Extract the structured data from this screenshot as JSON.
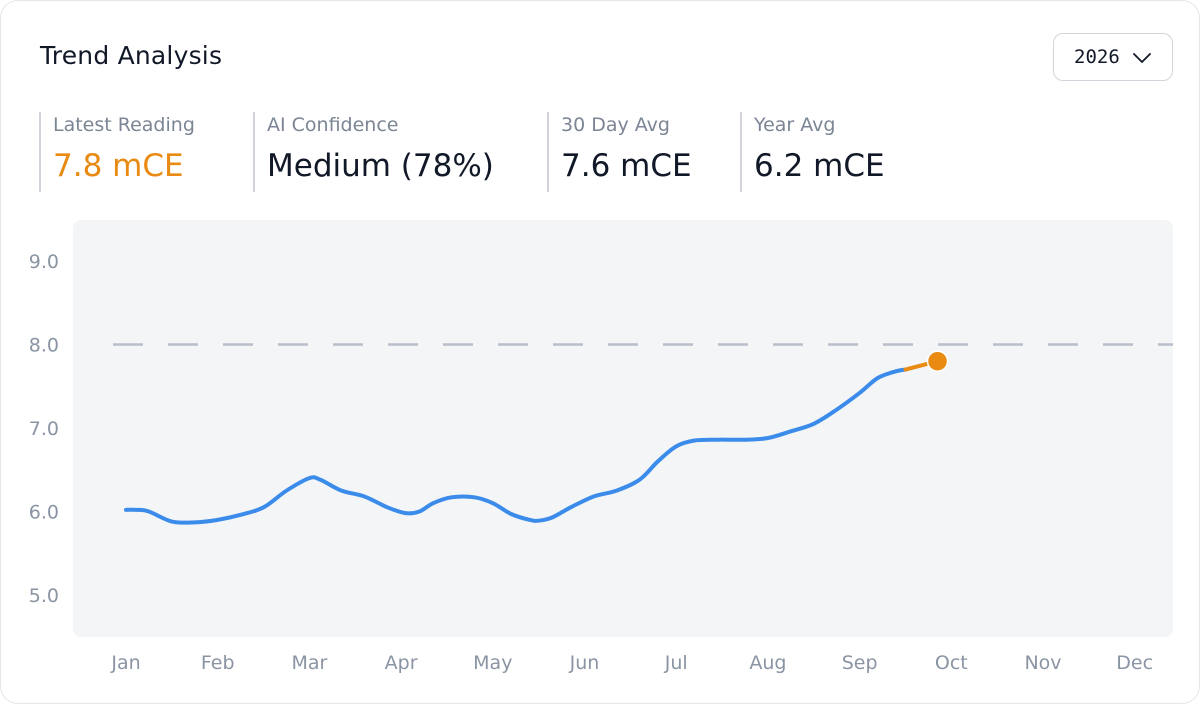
{
  "header": {
    "title": "Trend Analysis",
    "year_selector": {
      "value": "2026",
      "icon": "chevron-down-icon"
    }
  },
  "stats": [
    {
      "label": "Latest Reading",
      "value": "7.8 mCE",
      "accent": true
    },
    {
      "label": "AI Confidence",
      "value": "Medium (78%)",
      "accent": false
    },
    {
      "label": "30 Day Avg",
      "value": "7.6 mCE",
      "accent": false
    },
    {
      "label": "Year Avg",
      "value": "6.2 mCE",
      "accent": false
    }
  ],
  "colors": {
    "series": "#3b8beb",
    "latest": "#e98a12",
    "threshold": "#b8bfca",
    "plot_background": "#f3f5f7"
  },
  "chart_data": {
    "type": "line",
    "title": "",
    "xlabel": "",
    "ylabel": "",
    "categories": [
      "Jan",
      "Feb",
      "Mar",
      "Apr",
      "May",
      "Jun",
      "Jul",
      "Aug",
      "Sep",
      "Oct",
      "Nov",
      "Dec"
    ],
    "x_range": [
      0,
      11
    ],
    "ylim": [
      4.6,
      9.5
    ],
    "y_ticks": [
      9.0,
      8.0,
      7.0,
      6.0,
      5.0
    ],
    "y_tick_labels": [
      "9.0",
      "8.0",
      "7.0",
      "6.0",
      "5.0"
    ],
    "grid": false,
    "threshold": {
      "value": 8.0,
      "style": "dashed"
    },
    "series": [
      {
        "style": "solid",
        "points": [
          [
            0.0,
            6.02
          ],
          [
            0.12,
            6.02
          ],
          [
            0.25,
            6.0
          ],
          [
            0.5,
            5.88
          ],
          [
            0.75,
            5.87
          ],
          [
            1.0,
            5.9
          ],
          [
            1.25,
            5.96
          ],
          [
            1.5,
            6.05
          ],
          [
            1.75,
            6.25
          ],
          [
            2.0,
            6.4
          ],
          [
            2.12,
            6.38
          ],
          [
            2.35,
            6.25
          ],
          [
            2.6,
            6.18
          ],
          [
            2.85,
            6.05
          ],
          [
            3.05,
            5.98
          ],
          [
            3.2,
            6.0
          ],
          [
            3.35,
            6.1
          ],
          [
            3.55,
            6.17
          ],
          [
            3.8,
            6.17
          ],
          [
            4.0,
            6.1
          ],
          [
            4.2,
            5.97
          ],
          [
            4.4,
            5.9
          ],
          [
            4.5,
            5.89
          ],
          [
            4.65,
            5.93
          ],
          [
            4.85,
            6.05
          ],
          [
            5.1,
            6.18
          ],
          [
            5.35,
            6.25
          ],
          [
            5.6,
            6.38
          ],
          [
            5.8,
            6.6
          ],
          [
            6.0,
            6.78
          ],
          [
            6.2,
            6.85
          ],
          [
            6.45,
            6.86
          ],
          [
            6.75,
            6.86
          ],
          [
            7.0,
            6.88
          ],
          [
            7.25,
            6.96
          ],
          [
            7.5,
            7.05
          ],
          [
            7.75,
            7.22
          ],
          [
            8.0,
            7.42
          ],
          [
            8.2,
            7.6
          ],
          [
            8.4,
            7.68
          ],
          [
            8.5,
            7.7
          ]
        ]
      },
      {
        "style": "latest",
        "points": [
          [
            8.5,
            7.7
          ],
          [
            8.85,
            7.8
          ]
        ]
      }
    ],
    "latest_point": {
      "x": 8.85,
      "y": 7.8
    }
  }
}
